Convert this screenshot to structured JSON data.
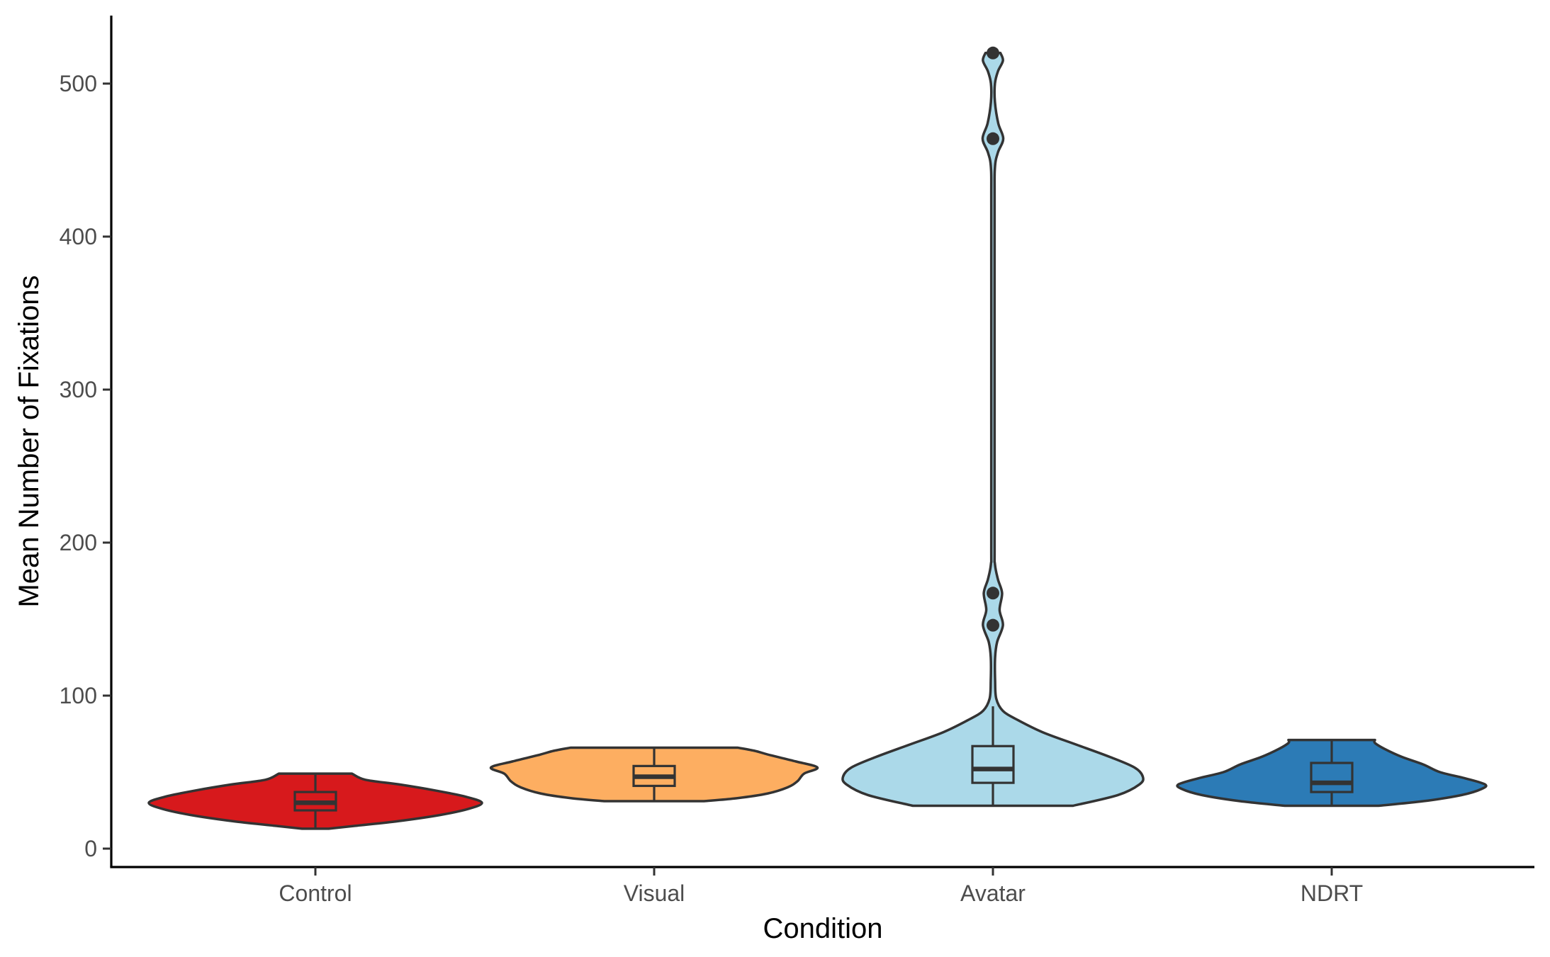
{
  "chart_data": {
    "type": "violin",
    "xlabel": "Condition",
    "ylabel": "Mean Number of Fixations",
    "ylim": [
      -12,
      538
    ],
    "yticks": [
      0,
      100,
      200,
      300,
      400,
      500
    ],
    "grid": false,
    "legend": "none",
    "categories": [
      "Control",
      "Visual",
      "Avatar",
      "NDRT"
    ],
    "series": [
      {
        "category": "Control",
        "color": "#d7191c",
        "box": {
          "min": 13,
          "q1": 25,
          "median": 30,
          "q3": 37,
          "max": 49
        },
        "outliers": [],
        "density": [
          [
            13,
            0.08
          ],
          [
            15,
            0.25
          ],
          [
            18,
            0.5
          ],
          [
            22,
            0.75
          ],
          [
            26,
            0.92
          ],
          [
            30,
            1.0
          ],
          [
            34,
            0.9
          ],
          [
            38,
            0.72
          ],
          [
            42,
            0.5
          ],
          [
            45,
            0.3
          ],
          [
            49,
            0.22
          ]
        ]
      },
      {
        "category": "Visual",
        "color": "#fdae61",
        "box": {
          "min": 31,
          "q1": 41,
          "median": 47,
          "q3": 54,
          "max": 66
        },
        "outliers": [],
        "density": [
          [
            31,
            0.3
          ],
          [
            33,
            0.5
          ],
          [
            36,
            0.68
          ],
          [
            40,
            0.8
          ],
          [
            44,
            0.86
          ],
          [
            49,
            0.9
          ],
          [
            53,
            0.98
          ],
          [
            57,
            0.85
          ],
          [
            61,
            0.7
          ],
          [
            64,
            0.6
          ],
          [
            66,
            0.5
          ]
        ]
      },
      {
        "category": "Avatar",
        "color": "#abd9e9",
        "box": {
          "min": 28,
          "q1": 43,
          "median": 52,
          "q3": 67,
          "max": 93
        },
        "outliers": [
          146,
          167,
          464,
          520
        ],
        "density": [
          [
            28,
            0.48
          ],
          [
            35,
            0.75
          ],
          [
            42,
            0.88
          ],
          [
            47,
            0.9
          ],
          [
            53,
            0.85
          ],
          [
            60,
            0.7
          ],
          [
            68,
            0.5
          ],
          [
            76,
            0.3
          ],
          [
            84,
            0.15
          ],
          [
            90,
            0.06
          ],
          [
            98,
            0.02
          ],
          [
            110,
            0.013
          ],
          [
            125,
            0.013
          ],
          [
            135,
            0.025
          ],
          [
            146,
            0.06
          ],
          [
            156,
            0.04
          ],
          [
            167,
            0.055
          ],
          [
            176,
            0.03
          ],
          [
            186,
            0.012
          ],
          [
            200,
            0.01
          ],
          [
            300,
            0.01
          ],
          [
            420,
            0.01
          ],
          [
            445,
            0.012
          ],
          [
            455,
            0.03
          ],
          [
            464,
            0.062
          ],
          [
            474,
            0.032
          ],
          [
            488,
            0.012
          ],
          [
            500,
            0.012
          ],
          [
            508,
            0.03
          ],
          [
            515,
            0.06
          ],
          [
            520,
            0.045
          ]
        ]
      },
      {
        "category": "NDRT",
        "color": "#2c7bb6",
        "box": {
          "min": 28,
          "q1": 37,
          "median": 43,
          "q3": 56,
          "max": 71
        },
        "outliers": [],
        "density": [
          [
            28,
            0.28
          ],
          [
            31,
            0.55
          ],
          [
            35,
            0.78
          ],
          [
            39,
            0.9
          ],
          [
            42,
            0.92
          ],
          [
            46,
            0.8
          ],
          [
            50,
            0.65
          ],
          [
            55,
            0.55
          ],
          [
            60,
            0.42
          ],
          [
            65,
            0.32
          ],
          [
            69,
            0.26
          ],
          [
            71,
            0.26
          ]
        ]
      }
    ]
  }
}
